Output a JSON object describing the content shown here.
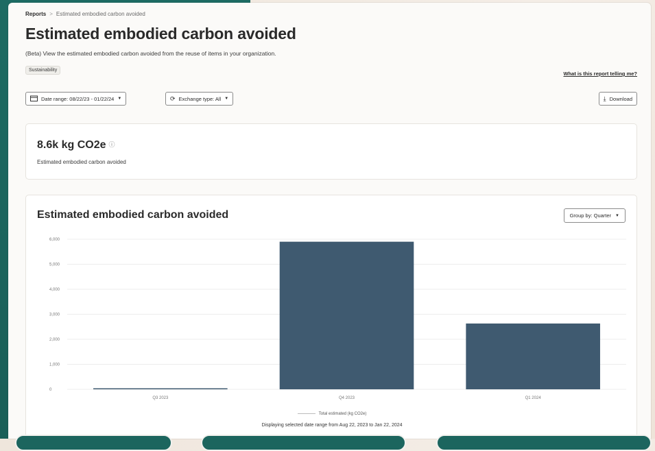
{
  "breadcrumb": {
    "root": "Reports",
    "separator": ">",
    "current": "Estimated embodied carbon avoided"
  },
  "header": {
    "title": "Estimated embodied carbon avoided",
    "subtitle": "(Beta) View the estimated embodied carbon avoided from the reuse of items in your organization.",
    "tag": "Sustainability",
    "help_link": "What is this report telling me?"
  },
  "filters": {
    "date_range_label": "Date range: 08/22/23 - 01/22/24",
    "exchange_type_label": "Exchange type: All",
    "download_label": "Download"
  },
  "metric": {
    "value": "8.6k kg CO2e",
    "label": "Estimated embodied carbon avoided"
  },
  "chart_section": {
    "title": "Estimated embodied carbon avoided",
    "group_by_label": "Group by: Quarter",
    "legend_label": "Total estimated (kg CO2e)",
    "display_note": "Displaying selected date range from Aug 22, 2023 to Jan 22, 2024"
  },
  "colors": {
    "bar": "#3f5a70",
    "accent_teal": "#1d6b63"
  },
  "icons": {
    "date": "calendar-icon",
    "exchange": "refresh-icon",
    "download": "download-icon",
    "info": "info-icon",
    "caret": "caret-down-icon"
  },
  "chart_data": {
    "type": "bar",
    "categories": [
      "Q3 2023",
      "Q4 2023",
      "Q1 2024"
    ],
    "values": [
      30,
      5900,
      2630
    ],
    "ylim": [
      0,
      6000
    ],
    "yticks": [
      0,
      1000,
      2000,
      3000,
      4000,
      5000,
      6000
    ],
    "ytick_labels": [
      "0",
      "1,000",
      "2,000",
      "3,000",
      "4,000",
      "5,000",
      "6,000"
    ],
    "grid": true,
    "legend_position": "bottom",
    "series_name": "Total estimated (kg CO2e)"
  }
}
